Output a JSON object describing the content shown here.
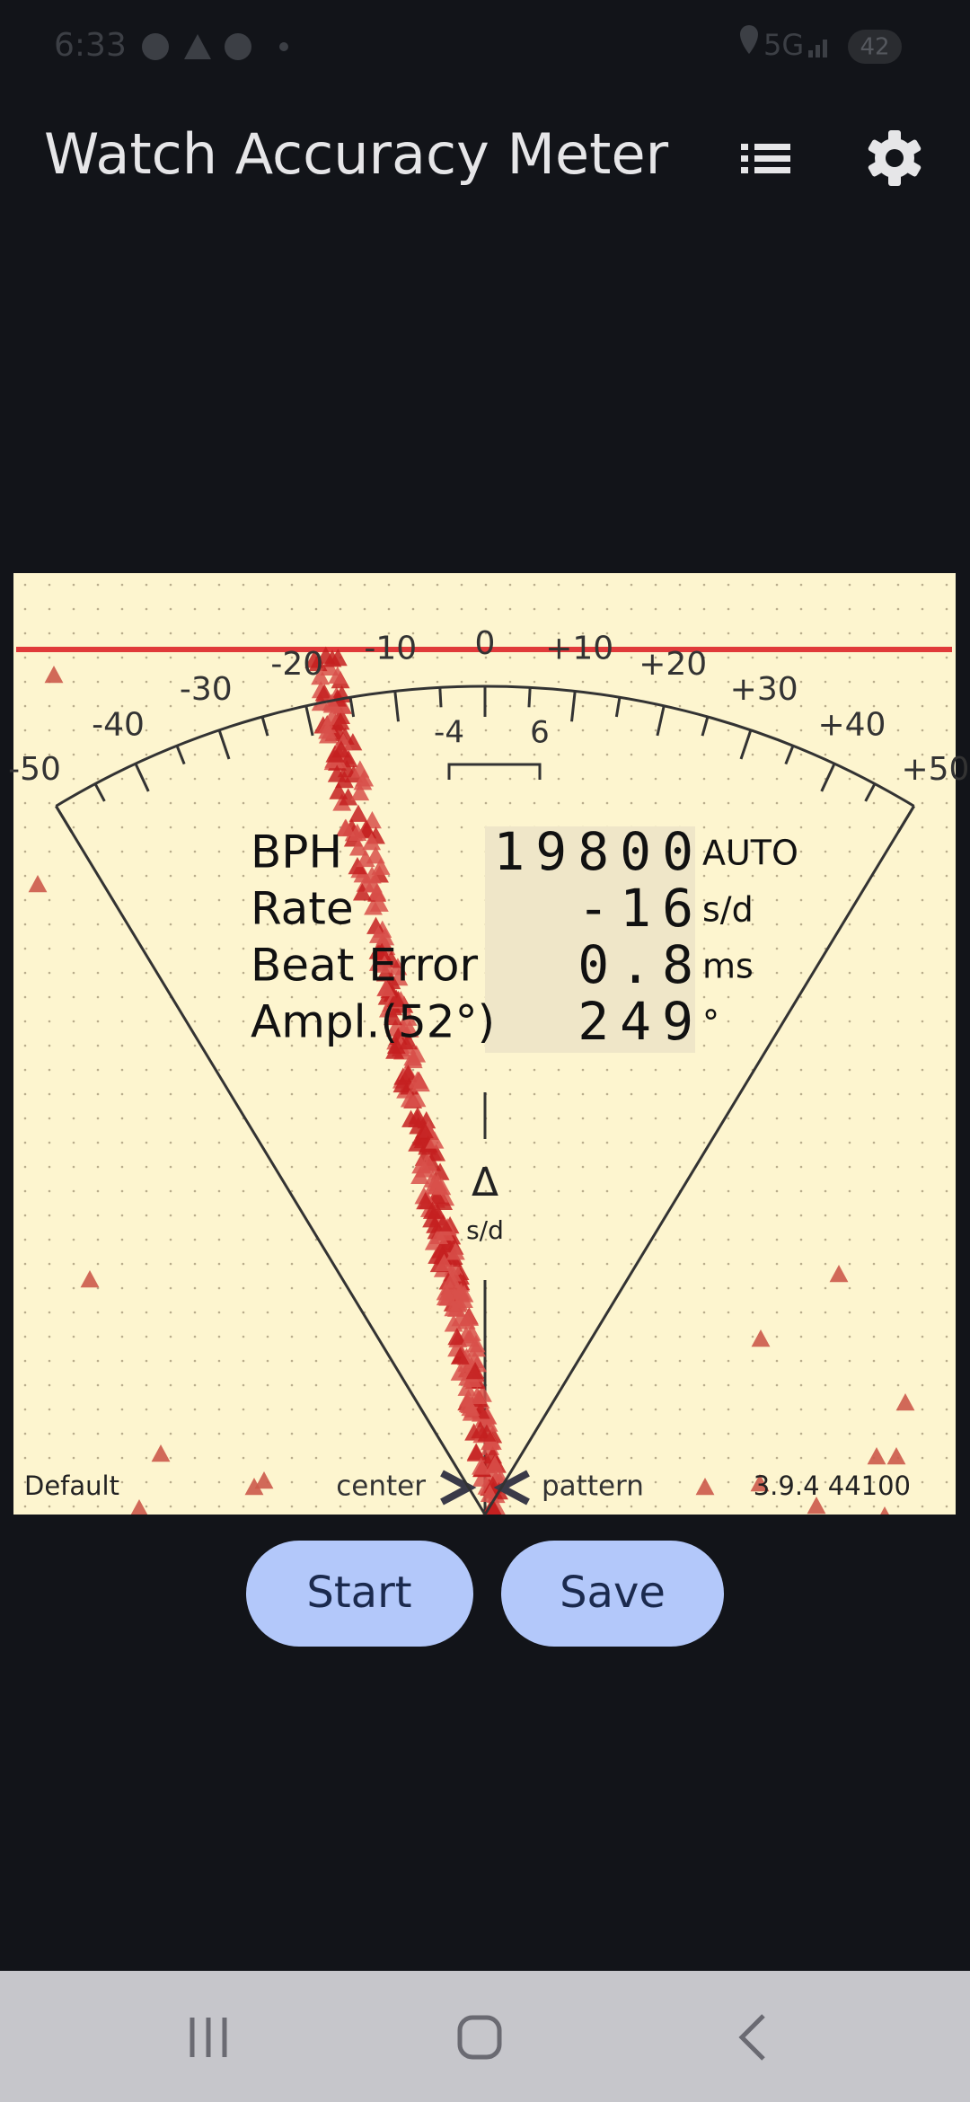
{
  "status_bar": {
    "time": "6:33",
    "network": "5G",
    "battery": "42"
  },
  "app_bar": {
    "title": "Watch Accuracy Meter"
  },
  "meter": {
    "scale_labels": [
      "-50",
      "-40",
      "-30",
      "-20",
      "-10",
      "0",
      "+10",
      "+20",
      "+30",
      "+40",
      "+50"
    ],
    "fine_labels": [
      "-4",
      "6"
    ],
    "readouts": [
      {
        "label": "BPH",
        "value": "19800",
        "unit": "AUTO"
      },
      {
        "label": "Rate",
        "value": "-16",
        "unit": "s/d"
      },
      {
        "label": "Beat Error",
        "value": "0.8",
        "unit": "ms"
      },
      {
        "label": "Ampl.(52°)",
        "value": "249",
        "unit": "°"
      }
    ],
    "delta_symbol": "Δ",
    "delta_unit": "s/d",
    "profile": "Default",
    "left_mode": "center",
    "right_mode": "pattern",
    "version": "3.9.4 44100"
  },
  "buttons": [
    "Start",
    "Save"
  ]
}
